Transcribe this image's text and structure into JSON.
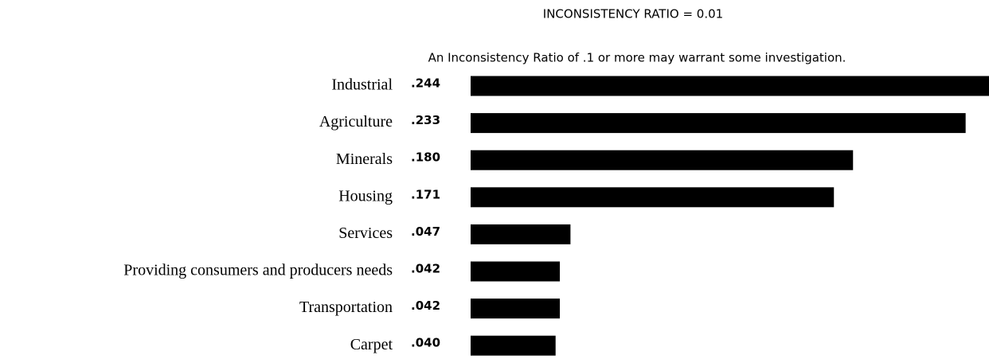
{
  "chart_data": {
    "type": "barh",
    "title": "INCONSISTENCY RATIO = 0.01",
    "subtitle": "An Inconsistency Ratio of .1 or more may warrant some investigation.",
    "categories": [
      "Industrial",
      "Agriculture",
      "Minerals",
      "Housing",
      "Services",
      "Providing consumers and producers needs",
      "Transportation",
      "Carpet"
    ],
    "values": [
      0.244,
      0.233,
      0.18,
      0.171,
      0.047,
      0.042,
      0.042,
      0.04
    ],
    "value_labels": [
      ".244",
      ".233",
      ".180",
      ".171",
      ".047",
      ".042",
      ".042",
      ".040"
    ],
    "color": "#000000"
  }
}
